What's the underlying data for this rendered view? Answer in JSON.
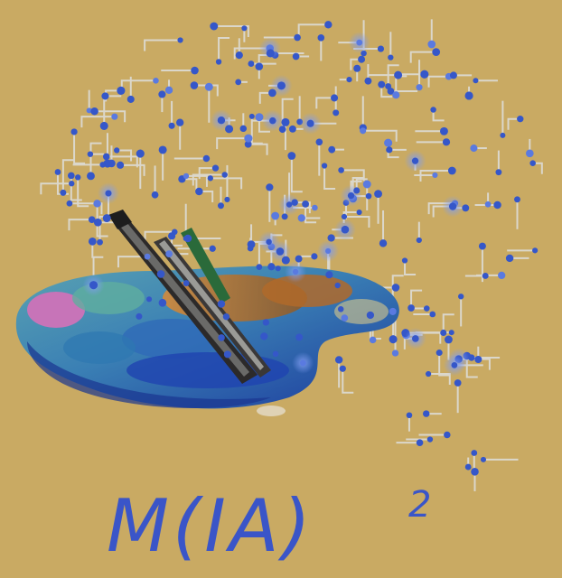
{
  "logo": {
    "text_main": "M(IA)",
    "text_sup": "2",
    "text_color": "#3a55c8"
  },
  "colors": {
    "background": "#c9aa63",
    "node": "#3557c9",
    "node_glow": "#6f8fe6",
    "trace": "#dfe3ea",
    "palette_teal": "#4e98a8",
    "palette_blue": "#2346b0",
    "palette_orange": "#c7782e",
    "palette_pink": "#c774b8"
  },
  "icons": {
    "illustration": "brain-circuit-with-paint-palette"
  }
}
